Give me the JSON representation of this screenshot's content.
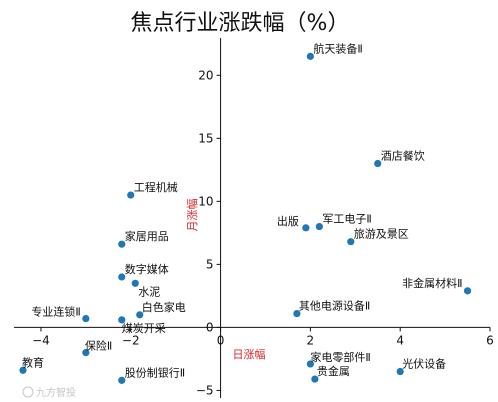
{
  "chart_data": {
    "type": "scatter",
    "title": "焦点行业涨跌幅（%）",
    "xlabel": "日涨幅",
    "ylabel": "月涨幅",
    "xlim": [
      -4.6,
      6.0
    ],
    "ylim": [
      -5.6,
      22.8
    ],
    "xticks": [
      -4,
      -2,
      0,
      2,
      4,
      6
    ],
    "yticks": [
      -5,
      0,
      5,
      10,
      15,
      20
    ],
    "grid": false,
    "points": [
      {
        "name": "航天装备Ⅱ",
        "x": 2.0,
        "y": 21.5
      },
      {
        "name": "酒店餐饮",
        "x": 3.5,
        "y": 13.0
      },
      {
        "name": "工程机械",
        "x": -2.0,
        "y": 10.5
      },
      {
        "name": "出版",
        "x": 1.9,
        "y": 7.9
      },
      {
        "name": "军工电子Ⅱ",
        "x": 2.2,
        "y": 8.0
      },
      {
        "name": "旅游及景区",
        "x": 2.9,
        "y": 6.8
      },
      {
        "name": "家居用品",
        "x": -2.2,
        "y": 6.6
      },
      {
        "name": "数字媒体",
        "x": -2.2,
        "y": 4.0
      },
      {
        "name": "水泥",
        "x": -1.9,
        "y": 3.5
      },
      {
        "name": "非金属材料Ⅱ",
        "x": 5.5,
        "y": 2.9
      },
      {
        "name": "其他电源设备Ⅱ",
        "x": 1.7,
        "y": 1.1
      },
      {
        "name": "专业连锁Ⅱ",
        "x": -3.0,
        "y": 0.7
      },
      {
        "name": "白色家电",
        "x": -1.8,
        "y": 1.0
      },
      {
        "name": "煤炭开采",
        "x": -2.2,
        "y": 0.6
      },
      {
        "name": "保险Ⅱ",
        "x": -3.0,
        "y": -2.0
      },
      {
        "name": "教育",
        "x": -4.4,
        "y": -3.4
      },
      {
        "name": "股份制银行Ⅱ",
        "x": -2.2,
        "y": -4.2
      },
      {
        "name": "家电零部件Ⅱ",
        "x": 2.0,
        "y": -2.9
      },
      {
        "name": "贵金属",
        "x": 2.1,
        "y": -4.1
      },
      {
        "name": "光伏设备",
        "x": 4.0,
        "y": -3.5
      }
    ]
  },
  "watermark": "九方智投"
}
